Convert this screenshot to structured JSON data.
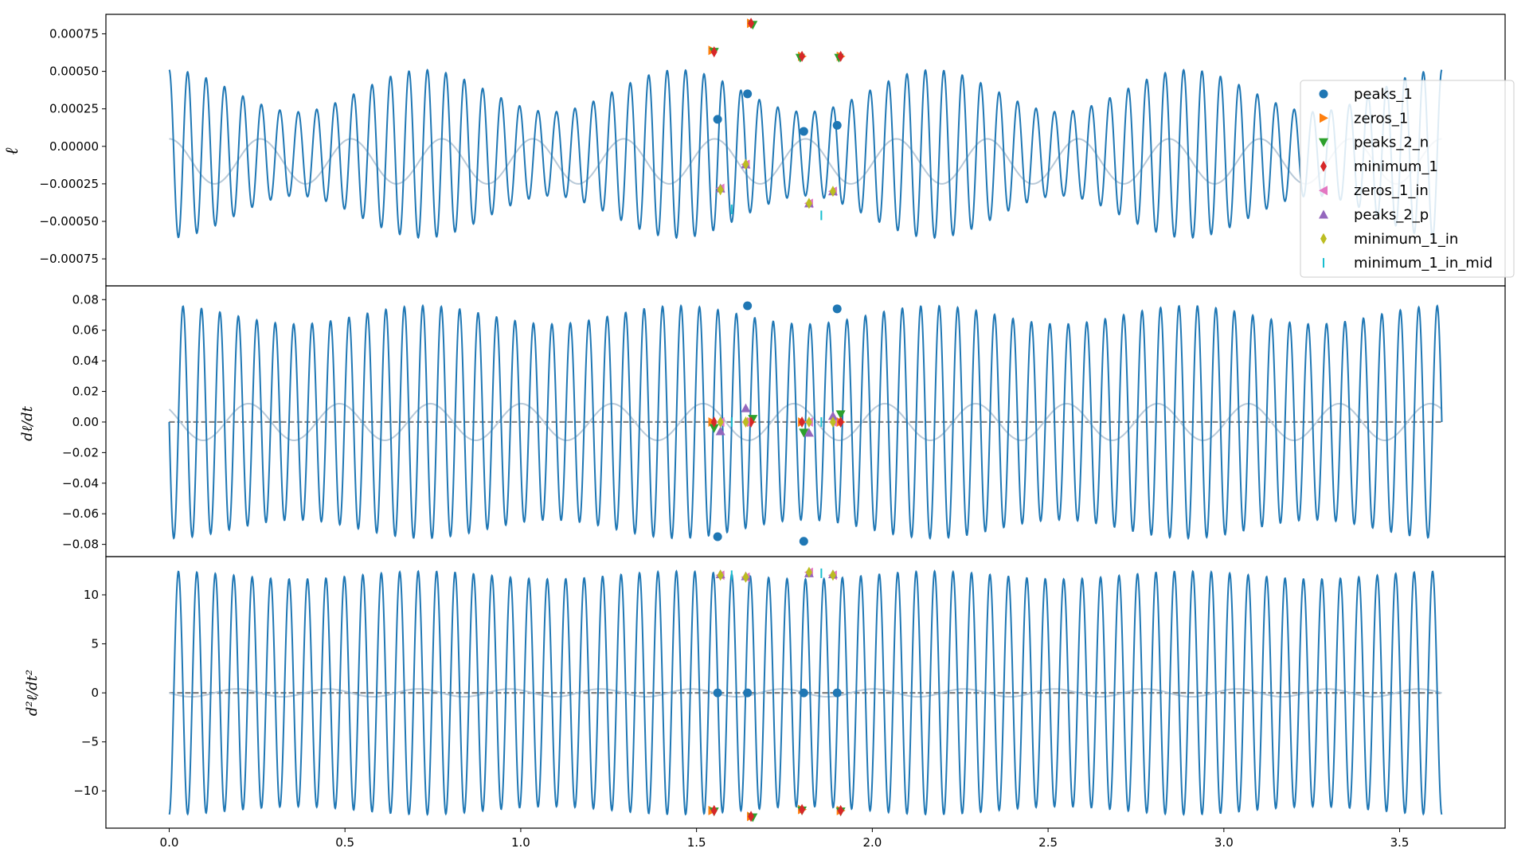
{
  "colors": {
    "signal": "#1f77b4",
    "envelope": "#b8c9d8",
    "zero_line": "#808080",
    "peaks_1": "#1f77b4",
    "zeros_1": "#ff7f0e",
    "peaks_2_n": "#2ca02c",
    "minimum_1": "#d62728",
    "zeros_1_in": "#e377c2",
    "peaks_2_p": "#9467bd",
    "minimum_1_in": "#bcbd22",
    "minimum_1_in_mid": "#17becf"
  },
  "chart_data": {
    "type": "line",
    "shared_x": {
      "range": [
        -0.18,
        3.8
      ],
      "ticks": [
        0.0,
        0.5,
        1.0,
        1.5,
        2.0,
        2.5,
        3.0,
        3.5
      ],
      "tick_labels": [
        "0.0",
        "0.5",
        "1.0",
        "1.5",
        "2.0",
        "2.5",
        "3.0",
        "3.5"
      ]
    },
    "legend": {
      "placement": "right, upper part of top panel",
      "entries": [
        {
          "name": "peaks_1",
          "marker": "circle"
        },
        {
          "name": "zeros_1",
          "marker": "triangle-right"
        },
        {
          "name": "peaks_2_n",
          "marker": "triangle-down"
        },
        {
          "name": "minimum_1",
          "marker": "thin-diamond"
        },
        {
          "name": "zeros_1_in",
          "marker": "triangle-left"
        },
        {
          "name": "peaks_2_p",
          "marker": "triangle-up"
        },
        {
          "name": "minimum_1_in",
          "marker": "thin-diamond"
        },
        {
          "name": "minimum_1_in_mid",
          "marker": "vline"
        }
      ]
    },
    "panels": [
      {
        "ylabel": "ℓ",
        "ylim": [
          -0.00093,
          0.00088
        ],
        "yticks": [
          -0.00075,
          -0.0005,
          -0.00025,
          0.0,
          0.00025,
          0.0005,
          0.00075
        ],
        "ytick_labels": [
          "−0.00075",
          "−0.00050",
          "−0.00025",
          "0.00000",
          "0.00025",
          "0.00050",
          "0.00075"
        ],
        "signal": {
          "x_start": 0.0,
          "x_end": 3.62,
          "cycles": 69,
          "base_amplitude": 0.00042,
          "mod_amplitude": 0.00014,
          "offset": -5e-05
        },
        "envelope": {
          "cycles": 14,
          "amplitude": 0.00015,
          "offset": -0.0001
        },
        "markers": {
          "peaks_1": [
            [
              1.56,
              0.00018
            ],
            [
              1.645,
              0.00035
            ],
            [
              1.805,
              0.0001
            ],
            [
              1.9,
              0.00014
            ]
          ],
          "zeros_1": [
            [
              1.545,
              0.00064
            ],
            [
              1.655,
              0.00082
            ],
            [
              1.8,
              0.0006
            ],
            [
              1.91,
              0.0006
            ]
          ],
          "peaks_2_n": [
            [
              1.55,
              0.00063
            ],
            [
              1.66,
              0.00081
            ],
            [
              1.795,
              0.00059
            ],
            [
              1.905,
              0.00059
            ]
          ],
          "minimum_1": [
            [
              1.55,
              0.00063
            ],
            [
              1.655,
              0.00082
            ],
            [
              1.8,
              0.0006
            ],
            [
              1.91,
              0.0006
            ]
          ],
          "zeros_1_in": [
            [
              1.568,
              -0.00028
            ],
            [
              1.64,
              -0.00012
            ],
            [
              1.82,
              -0.00038
            ],
            [
              1.888,
              -0.0003
            ]
          ],
          "peaks_2_p": [
            [
              1.568,
              -0.00028
            ],
            [
              1.64,
              -0.00012
            ],
            [
              1.82,
              -0.00038
            ],
            [
              1.888,
              -0.0003
            ]
          ],
          "minimum_1_in": [
            [
              1.568,
              -0.00029
            ],
            [
              1.64,
              -0.00012
            ],
            [
              1.82,
              -0.00038
            ],
            [
              1.888,
              -0.0003
            ]
          ],
          "minimum_1_in_mid": [
            [
              1.6,
              -0.00042
            ],
            [
              1.855,
              -0.00046
            ]
          ]
        }
      },
      {
        "ylabel": "dℓ/dt",
        "ylim": [
          -0.088,
          0.089
        ],
        "yticks": [
          -0.08,
          -0.06,
          -0.04,
          -0.02,
          0.0,
          0.02,
          0.04,
          0.06,
          0.08
        ],
        "ytick_labels": [
          "−0.08",
          "−0.06",
          "−0.04",
          "−0.02",
          "0.00",
          "0.02",
          "0.04",
          "0.06",
          "0.08"
        ],
        "signal": {
          "x_start": 0.0,
          "x_end": 3.62,
          "cycles": 69,
          "base_amplitude": 0.07,
          "mod_amplitude": 0.006,
          "offset": 0.0
        },
        "envelope": {
          "cycles": 14,
          "amplitude": 0.012,
          "offset": 0.0
        },
        "markers": {
          "peaks_1": [
            [
              1.56,
              -0.075
            ],
            [
              1.645,
              0.076
            ],
            [
              1.805,
              -0.078
            ],
            [
              1.9,
              0.074
            ]
          ],
          "zeros_1": [
            [
              1.545,
              0.0
            ],
            [
              1.655,
              0.0
            ],
            [
              1.8,
              0.0
            ],
            [
              1.91,
              0.0
            ]
          ],
          "peaks_2_n": [
            [
              1.55,
              -0.004
            ],
            [
              1.66,
              0.002
            ],
            [
              1.805,
              -0.007
            ],
            [
              1.91,
              0.005
            ]
          ],
          "minimum_1": [
            [
              1.55,
              0.0
            ],
            [
              1.655,
              0.0
            ],
            [
              1.8,
              0.0
            ],
            [
              1.91,
              0.0
            ]
          ],
          "zeros_1_in": [
            [
              1.568,
              0.0
            ],
            [
              1.64,
              0.0
            ],
            [
              1.82,
              0.0
            ],
            [
              1.888,
              0.0
            ]
          ],
          "peaks_2_p": [
            [
              1.568,
              -0.006
            ],
            [
              1.64,
              0.009
            ],
            [
              1.82,
              -0.007
            ],
            [
              1.888,
              0.004
            ]
          ],
          "minimum_1_in": [
            [
              1.568,
              0.0
            ],
            [
              1.64,
              0.0
            ],
            [
              1.82,
              0.0
            ],
            [
              1.888,
              0.0
            ]
          ],
          "minimum_1_in_mid": [
            [
              1.6,
              0.0
            ],
            [
              1.855,
              0.0
            ]
          ]
        }
      },
      {
        "ylabel": "d²ℓ/dt²",
        "ylim": [
          -13.8,
          13.9
        ],
        "yticks": [
          -10,
          -5,
          0,
          5,
          10
        ],
        "ytick_labels": [
          "−10",
          "−5",
          "0",
          "5",
          "10"
        ],
        "signal": {
          "x_start": 0.0,
          "x_end": 3.62,
          "cycles": 69,
          "base_amplitude": 12.0,
          "mod_amplitude": 0.4,
          "offset": 0.0
        },
        "envelope": {
          "cycles": 14,
          "amplitude": 0.4,
          "offset": 0.0
        },
        "markers": {
          "peaks_1": [
            [
              1.56,
              0.0
            ],
            [
              1.645,
              0.0
            ],
            [
              1.805,
              0.0
            ],
            [
              1.9,
              0.0
            ]
          ],
          "zeros_1": [
            [
              1.545,
              -12.0
            ],
            [
              1.655,
              -12.6
            ],
            [
              1.8,
              -11.9
            ],
            [
              1.91,
              -12.0
            ]
          ],
          "peaks_2_n": [
            [
              1.55,
              -12.1
            ],
            [
              1.66,
              -12.7
            ],
            [
              1.8,
              -12.0
            ],
            [
              1.91,
              -12.1
            ]
          ],
          "minimum_1": [
            [
              1.55,
              -12.0
            ],
            [
              1.655,
              -12.6
            ],
            [
              1.8,
              -11.9
            ],
            [
              1.91,
              -12.0
            ]
          ],
          "zeros_1_in": [
            [
              1.568,
              12.0
            ],
            [
              1.64,
              11.8
            ],
            [
              1.82,
              12.3
            ],
            [
              1.888,
              12.0
            ]
          ],
          "peaks_2_p": [
            [
              1.568,
              12.1
            ],
            [
              1.64,
              11.9
            ],
            [
              1.82,
              12.2
            ],
            [
              1.888,
              12.1
            ]
          ],
          "minimum_1_in": [
            [
              1.568,
              12.0
            ],
            [
              1.64,
              11.8
            ],
            [
              1.82,
              12.3
            ],
            [
              1.888,
              12.0
            ]
          ],
          "minimum_1_in_mid": [
            [
              1.6,
              12.0
            ],
            [
              1.855,
              12.2
            ]
          ]
        }
      }
    ]
  }
}
